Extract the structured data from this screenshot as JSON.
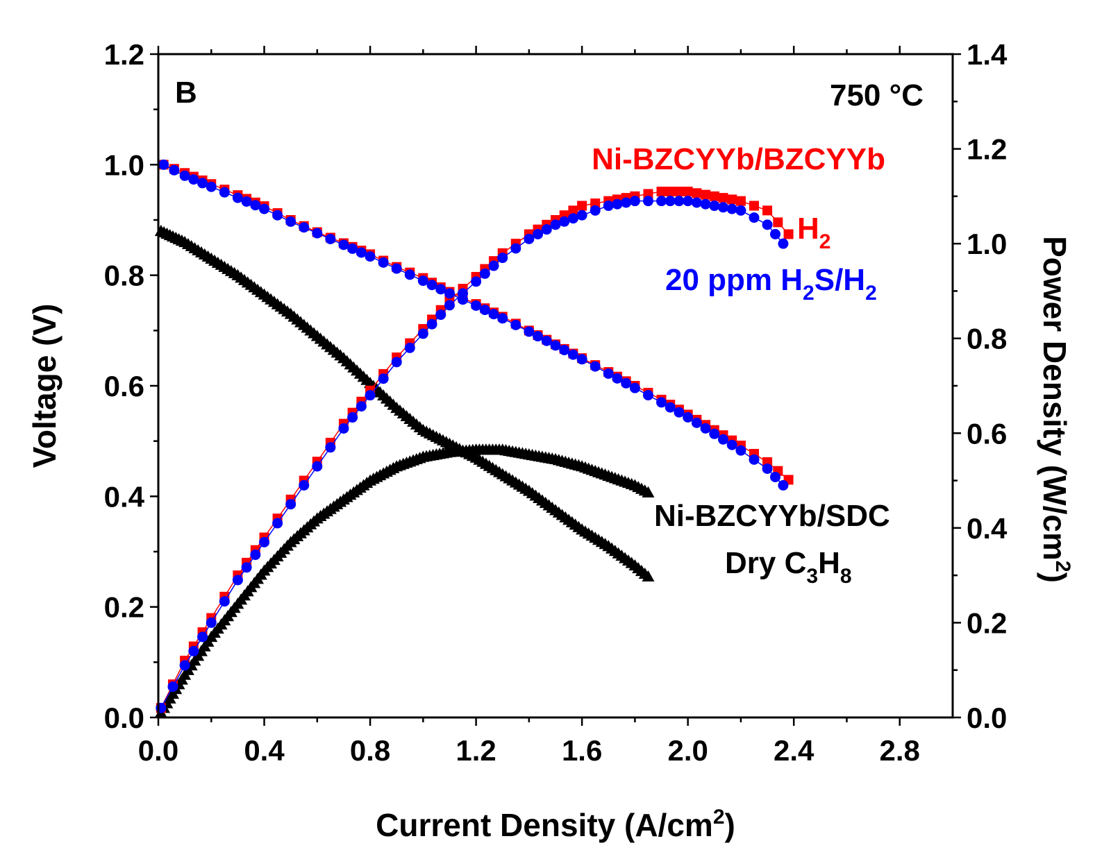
{
  "panel_label": "B",
  "temperature": "750 °C",
  "chart_data": {
    "type": "scatter",
    "title": "",
    "xlabel": "Current Density (A/cm2)",
    "ylabel": "Voltage (V)",
    "y2label": "Power Density (W/cm2)",
    "xlim": [
      0.0,
      3.0
    ],
    "ylim": [
      0.0,
      1.2
    ],
    "y2lim": [
      0.0,
      1.4
    ],
    "xticks": [
      "0.0",
      "0.4",
      "0.8",
      "1.2",
      "1.6",
      "2.0",
      "2.4",
      "2.8"
    ],
    "yticks": [
      "0.0",
      "0.2",
      "0.4",
      "0.6",
      "0.8",
      "1.0",
      "1.2"
    ],
    "y2ticks": [
      "0.0",
      "0.2",
      "0.4",
      "0.6",
      "0.8",
      "1.0",
      "1.2",
      "1.4"
    ],
    "annotations": {
      "cell1": "Ni-BZCYYb/BZCYYb",
      "h2": "H",
      "h2_sub": "2",
      "h2s_prefix": "20 ppm H",
      "h2s_sub1": "2",
      "h2s_mid": "S/H",
      "h2s_sub2": "2",
      "cell2": "Ni-BZCYYb/SDC",
      "c3h8_prefix": "Dry C",
      "c3h8_sub1": "3",
      "c3h8_mid": "H",
      "c3h8_sub2": "8"
    },
    "colors": {
      "h2": "#ff0000",
      "h2s": "#0000ff",
      "c3h8": "#000000"
    },
    "series": [
      {
        "name": "H2",
        "kind": "voltage",
        "axis": "left",
        "marker": "square",
        "color": "#ff0000",
        "x": [
          0.02,
          0.1,
          0.2,
          0.3,
          0.4,
          0.5,
          0.6,
          0.7,
          0.8,
          0.9,
          1.0,
          1.1,
          1.2,
          1.3,
          1.4,
          1.5,
          1.6,
          1.7,
          1.8,
          1.9,
          2.0,
          2.1,
          2.2,
          2.3,
          2.38
        ],
        "y": [
          1.0,
          0.985,
          0.965,
          0.945,
          0.925,
          0.9,
          0.878,
          0.858,
          0.838,
          0.815,
          0.795,
          0.77,
          0.748,
          0.725,
          0.7,
          0.675,
          0.65,
          0.625,
          0.6,
          0.575,
          0.548,
          0.52,
          0.492,
          0.462,
          0.43
        ]
      },
      {
        "name": "20 ppm H2S/H2",
        "kind": "voltage",
        "axis": "left",
        "marker": "circle",
        "color": "#0000ff",
        "x": [
          0.02,
          0.1,
          0.2,
          0.3,
          0.4,
          0.5,
          0.6,
          0.7,
          0.8,
          0.9,
          1.0,
          1.1,
          1.2,
          1.3,
          1.4,
          1.5,
          1.6,
          1.7,
          1.8,
          1.9,
          2.0,
          2.1,
          2.2,
          2.3,
          2.36
        ],
        "y": [
          1.0,
          0.98,
          0.96,
          0.94,
          0.92,
          0.897,
          0.876,
          0.855,
          0.834,
          0.812,
          0.79,
          0.767,
          0.745,
          0.722,
          0.698,
          0.673,
          0.648,
          0.622,
          0.596,
          0.57,
          0.543,
          0.513,
          0.483,
          0.45,
          0.42
        ]
      },
      {
        "name": "H2",
        "kind": "power",
        "axis": "right",
        "marker": "square",
        "color": "#ff0000",
        "x": [
          0.01,
          0.1,
          0.2,
          0.3,
          0.4,
          0.5,
          0.6,
          0.7,
          0.8,
          0.9,
          1.0,
          1.1,
          1.2,
          1.3,
          1.4,
          1.5,
          1.6,
          1.7,
          1.8,
          1.9,
          2.0,
          2.1,
          2.2,
          2.3,
          2.38
        ],
        "y": [
          0.02,
          0.12,
          0.21,
          0.3,
          0.38,
          0.46,
          0.54,
          0.62,
          0.69,
          0.76,
          0.82,
          0.88,
          0.93,
          0.98,
          1.02,
          1.05,
          1.08,
          1.09,
          1.1,
          1.11,
          1.11,
          1.1,
          1.09,
          1.07,
          1.02
        ]
      },
      {
        "name": "20 ppm H2S/H2",
        "kind": "power",
        "axis": "right",
        "marker": "circle",
        "color": "#0000ff",
        "x": [
          0.01,
          0.1,
          0.2,
          0.3,
          0.4,
          0.5,
          0.6,
          0.7,
          0.8,
          0.9,
          1.0,
          1.1,
          1.2,
          1.3,
          1.4,
          1.5,
          1.6,
          1.7,
          1.8,
          1.9,
          2.0,
          2.1,
          2.2,
          2.3,
          2.36
        ],
        "y": [
          0.02,
          0.11,
          0.2,
          0.29,
          0.37,
          0.45,
          0.53,
          0.61,
          0.68,
          0.75,
          0.81,
          0.87,
          0.92,
          0.97,
          1.01,
          1.04,
          1.06,
          1.08,
          1.09,
          1.09,
          1.09,
          1.08,
          1.07,
          1.04,
          1.0
        ]
      },
      {
        "name": "Dry C3H8",
        "kind": "voltage",
        "axis": "left",
        "marker": "triangle",
        "color": "#000000",
        "x": [
          0.01,
          0.1,
          0.2,
          0.3,
          0.4,
          0.5,
          0.6,
          0.7,
          0.8,
          0.9,
          1.0,
          1.1,
          1.2,
          1.3,
          1.4,
          1.5,
          1.6,
          1.7,
          1.8,
          1.85
        ],
        "y": [
          0.88,
          0.86,
          0.83,
          0.8,
          0.765,
          0.73,
          0.69,
          0.65,
          0.605,
          0.56,
          0.52,
          0.495,
          0.47,
          0.44,
          0.41,
          0.375,
          0.34,
          0.31,
          0.275,
          0.255
        ]
      },
      {
        "name": "Dry C3H8",
        "kind": "power",
        "axis": "right",
        "marker": "triangle",
        "color": "#000000",
        "x": [
          0.01,
          0.1,
          0.2,
          0.3,
          0.4,
          0.5,
          0.6,
          0.7,
          0.8,
          0.9,
          1.0,
          1.1,
          1.2,
          1.3,
          1.4,
          1.5,
          1.6,
          1.7,
          1.8,
          1.85
        ],
        "y": [
          0.01,
          0.09,
          0.17,
          0.24,
          0.31,
          0.37,
          0.42,
          0.46,
          0.5,
          0.53,
          0.55,
          0.56,
          0.565,
          0.565,
          0.555,
          0.545,
          0.53,
          0.51,
          0.49,
          0.475
        ]
      }
    ]
  }
}
